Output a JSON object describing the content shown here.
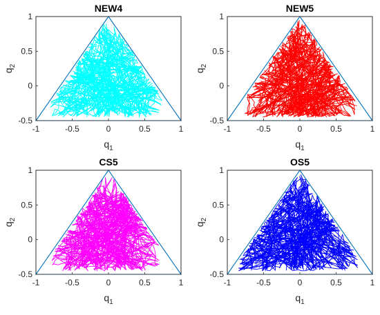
{
  "chart_data": [
    {
      "type": "line",
      "title": "NEW4",
      "xlabel": "q",
      "xlabel_sub": "1",
      "ylabel": "q",
      "ylabel_sub": "2",
      "xlim": [
        -1,
        1
      ],
      "ylim": [
        -0.5,
        1
      ],
      "xticks": [
        "-1",
        "-0.5",
        "0",
        "0.5",
        "1"
      ],
      "yticks": [
        "-0.5",
        "0",
        "0.5",
        "1"
      ],
      "boundary": {
        "vertices": [
          [
            -1,
            -0.5
          ],
          [
            0,
            1
          ],
          [
            1,
            -0.5
          ]
        ],
        "color": "#0072BD"
      },
      "series": [
        {
          "color": "#00FFFF",
          "extent": {
            "xmin": -0.85,
            "xmax": 0.75,
            "ymin": -0.45,
            "ymax": 0.9
          }
        }
      ]
    },
    {
      "type": "line",
      "title": "NEW5",
      "xlabel": "q",
      "xlabel_sub": "1",
      "ylabel": "q",
      "ylabel_sub": "2",
      "xlim": [
        -1,
        1
      ],
      "ylim": [
        -0.5,
        1
      ],
      "xticks": [
        "-1",
        "-0.5",
        "0",
        "0.5",
        "1"
      ],
      "yticks": [
        "-0.5",
        "0",
        "0.5",
        "1"
      ],
      "boundary": {
        "vertices": [
          [
            -1,
            -0.5
          ],
          [
            0,
            1
          ],
          [
            1,
            -0.5
          ]
        ],
        "color": "#0072BD"
      },
      "series": [
        {
          "color": "#FF0000",
          "extent": {
            "xmin": -0.85,
            "xmax": 0.8,
            "ymin": -0.45,
            "ymax": 0.95
          }
        }
      ]
    },
    {
      "type": "line",
      "title": "CS5",
      "xlabel": "q",
      "xlabel_sub": "1",
      "ylabel": "q",
      "ylabel_sub": "2",
      "xlim": [
        -1,
        1
      ],
      "ylim": [
        -0.5,
        1
      ],
      "xticks": [
        "-1",
        "-0.5",
        "0",
        "0.5",
        "1"
      ],
      "yticks": [
        "-0.5",
        "0",
        "0.5",
        "1"
      ],
      "boundary": {
        "vertices": [
          [
            -1,
            -0.5
          ],
          [
            0,
            1
          ],
          [
            1,
            -0.5
          ]
        ],
        "color": "#0072BD"
      },
      "series": [
        {
          "color": "#FF00FF",
          "extent": {
            "xmin": -0.8,
            "xmax": 0.7,
            "ymin": -0.45,
            "ymax": 0.9
          }
        }
      ]
    },
    {
      "type": "line",
      "title": "OS5",
      "xlabel": "q",
      "xlabel_sub": "1",
      "ylabel": "q",
      "ylabel_sub": "2",
      "xlim": [
        -1,
        1
      ],
      "ylim": [
        -0.5,
        1
      ],
      "xticks": [
        "-1",
        "-0.5",
        "0",
        "0.5",
        "1"
      ],
      "yticks": [
        "-0.5",
        "0",
        "0.5",
        "1"
      ],
      "boundary": {
        "vertices": [
          [
            -1,
            -0.5
          ],
          [
            0,
            1
          ],
          [
            1,
            -0.5
          ]
        ],
        "color": "#0072BD"
      },
      "series": [
        {
          "color": "#0000FF",
          "extent": {
            "xmin": -0.85,
            "xmax": 0.8,
            "ymin": -0.45,
            "ymax": 0.95
          }
        }
      ]
    }
  ]
}
